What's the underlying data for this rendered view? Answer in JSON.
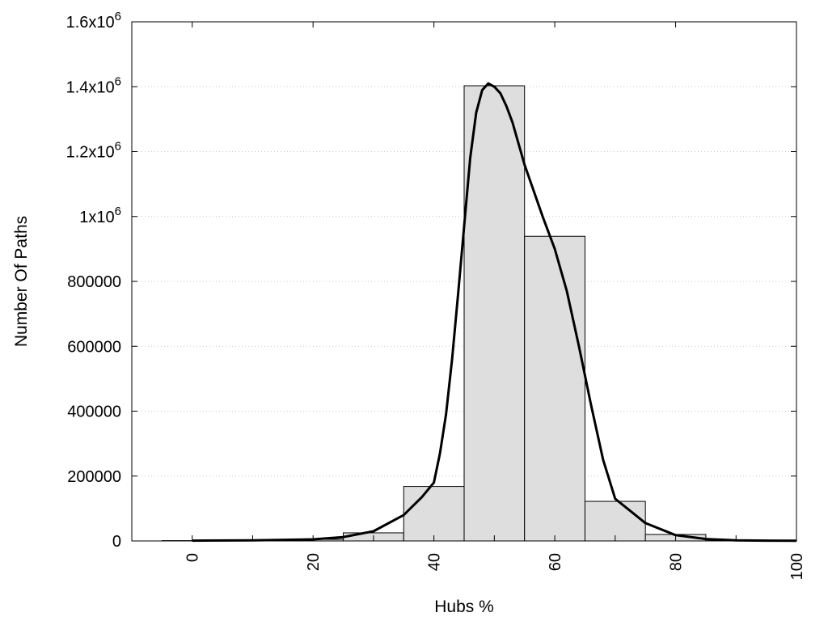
{
  "chart_data": {
    "type": "bar",
    "title": "",
    "xlabel": "Hubs %",
    "ylabel": "Number Of Paths",
    "xlim": [
      -10,
      100
    ],
    "ylim": [
      0,
      1600000
    ],
    "grid": "horizontal dotted",
    "bin_width": 10,
    "x_ticks": [
      0,
      20,
      40,
      60,
      80,
      100
    ],
    "y_ticks": [
      {
        "value": 0,
        "label": "0"
      },
      {
        "value": 200000,
        "label": "200000"
      },
      {
        "value": 400000,
        "label": "400000"
      },
      {
        "value": 600000,
        "label": "600000"
      },
      {
        "value": 800000,
        "label": "800000"
      },
      {
        "value": 1000000,
        "label": "1x10",
        "exp": "6"
      },
      {
        "value": 1200000,
        "label": "1.2x10",
        "exp": "6"
      },
      {
        "value": 1400000,
        "label": "1.4x10",
        "exp": "6"
      },
      {
        "value": 1600000,
        "label": "1.6x10",
        "exp": "6"
      }
    ],
    "bins": [
      {
        "center": 0,
        "value": 1000
      },
      {
        "center": 10,
        "value": 2000
      },
      {
        "center": 20,
        "value": 5000
      },
      {
        "center": 30,
        "value": 25000
      },
      {
        "center": 40,
        "value": 168000
      },
      {
        "center": 50,
        "value": 1403000
      },
      {
        "center": 60,
        "value": 939000
      },
      {
        "center": 70,
        "value": 122000
      },
      {
        "center": 80,
        "value": 20000
      },
      {
        "center": 90,
        "value": 3000
      },
      {
        "center": 100,
        "value": 1000
      }
    ],
    "series": [
      {
        "type": "line",
        "x": [
          0,
          10,
          20,
          25,
          30,
          35,
          38,
          40,
          41,
          42,
          43,
          44,
          45,
          46,
          47,
          48,
          49,
          50,
          51,
          52,
          53,
          55,
          58,
          60,
          62,
          64,
          66,
          68,
          70,
          75,
          80,
          85,
          90,
          95,
          100
        ],
        "y": [
          1000,
          2000,
          5000,
          12000,
          30000,
          80000,
          135000,
          180000,
          270000,
          390000,
          560000,
          760000,
          970000,
          1180000,
          1320000,
          1390000,
          1410000,
          1400000,
          1380000,
          1340000,
          1290000,
          1160000,
          1000000,
          900000,
          770000,
          600000,
          420000,
          250000,
          130000,
          55000,
          18000,
          6000,
          2000,
          1000,
          500
        ]
      }
    ]
  }
}
